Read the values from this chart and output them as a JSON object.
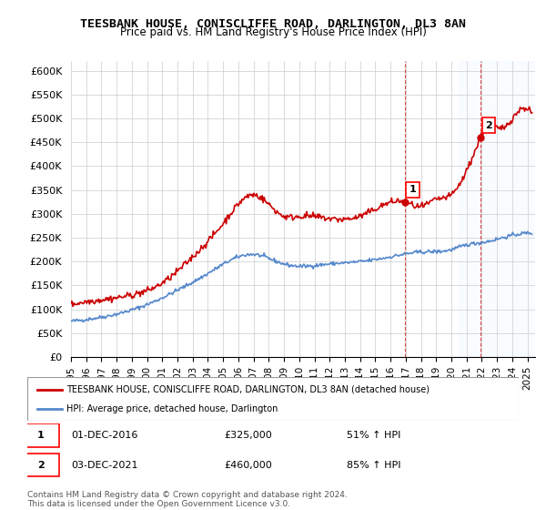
{
  "title": "TEESBANK HOUSE, CONISCLIFFE ROAD, DARLINGTON, DL3 8AN",
  "subtitle": "Price paid vs. HM Land Registry's House Price Index (HPI)",
  "ylabel_ticks": [
    "£0",
    "£50K",
    "£100K",
    "£150K",
    "£200K",
    "£250K",
    "£300K",
    "£350K",
    "£400K",
    "£450K",
    "£500K",
    "£550K",
    "£600K"
  ],
  "ytick_values": [
    0,
    50000,
    100000,
    150000,
    200000,
    250000,
    300000,
    350000,
    400000,
    450000,
    500000,
    550000,
    600000
  ],
  "ylim": [
    0,
    620000
  ],
  "xlim_start": 1995.0,
  "xlim_end": 2025.5,
  "point1_x": 2016.92,
  "point1_y": 325000,
  "point1_label": "1",
  "point1_date": "01-DEC-2016",
  "point1_price": "£325,000",
  "point1_hpi": "51% ↑ HPI",
  "point2_x": 2021.92,
  "point2_y": 460000,
  "point2_label": "2",
  "point2_date": "03-DEC-2021",
  "point2_price": "£460,000",
  "point2_hpi": "85% ↑ HPI",
  "legend_line1": "TEESBANK HOUSE, CONISCLIFFE ROAD, DARLINGTON, DL3 8AN (detached house)",
  "legend_line2": "HPI: Average price, detached house, Darlington",
  "footer": "Contains HM Land Registry data © Crown copyright and database right 2024.\nThis data is licensed under the Open Government Licence v3.0.",
  "line_color_red": "#cc0000",
  "line_color_blue": "#5588cc",
  "shade_color": "#ddeeff",
  "background_color": "#ffffff",
  "grid_color": "#cccccc"
}
